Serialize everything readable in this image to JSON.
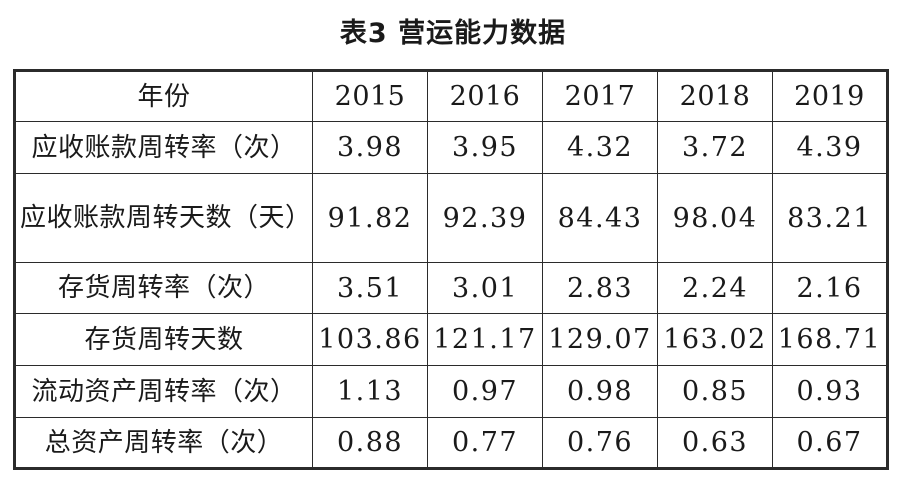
{
  "title": "表3  营运能力数据",
  "table": {
    "header_label": "年份",
    "years": [
      "2015",
      "2016",
      "2017",
      "2018",
      "2019"
    ],
    "rows": [
      {
        "label": "应收账款周转率（次）",
        "values": [
          "3.98",
          "3.95",
          "4.32",
          "3.72",
          "4.39"
        ]
      },
      {
        "label": "应收账款周转天数（天）",
        "values": [
          "91.82",
          "92.39",
          "84.43",
          "98.04",
          "83.21"
        ]
      },
      {
        "label": "存货周转率（次）",
        "values": [
          "3.51",
          "3.01",
          "2.83",
          "2.24",
          "2.16"
        ]
      },
      {
        "label": "存货周转天数",
        "values": [
          "103.86",
          "121.17",
          "129.07",
          "163.02",
          "168.71"
        ]
      },
      {
        "label": "流动资产周转率（次）",
        "values": [
          "1.13",
          "0.97",
          "0.98",
          "0.85",
          "0.93"
        ]
      },
      {
        "label": "总资产周转率（次）",
        "values": [
          "0.88",
          "0.77",
          "0.76",
          "0.63",
          "0.67"
        ]
      }
    ]
  }
}
